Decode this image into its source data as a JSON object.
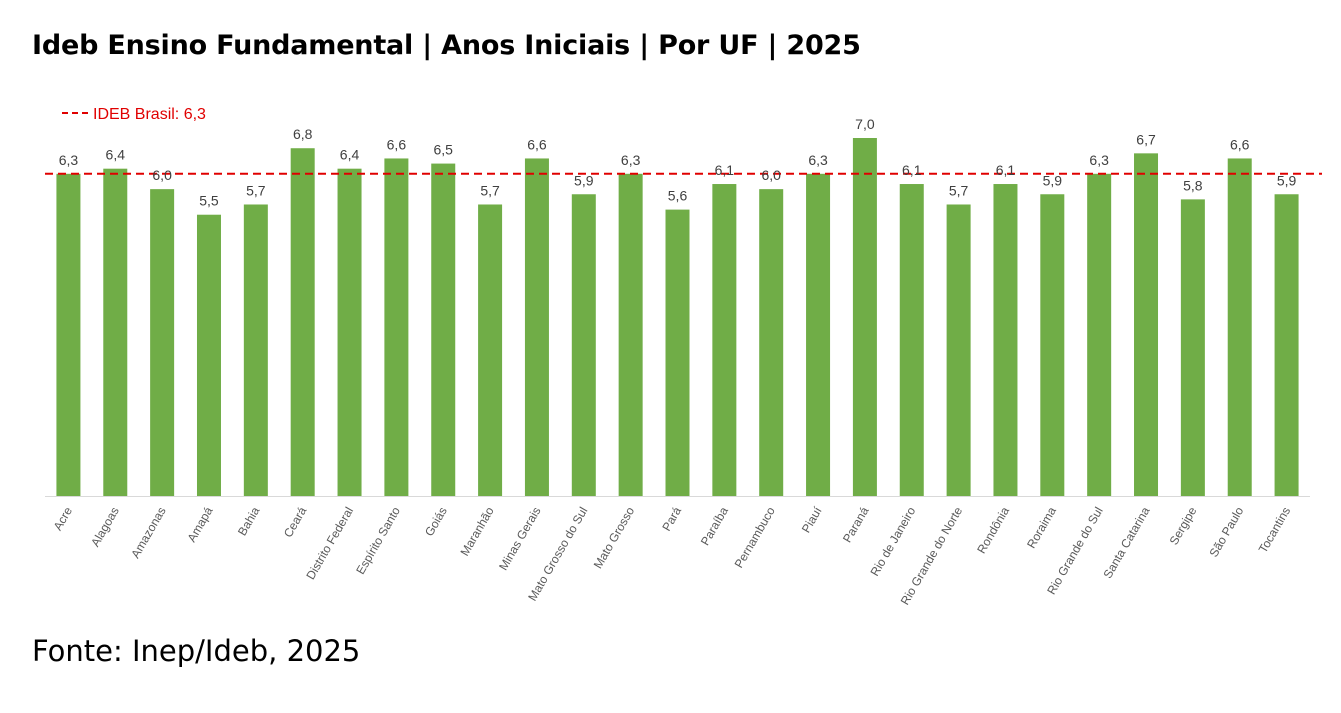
{
  "chart_data": {
    "type": "bar",
    "title": "Ideb Ensino Fundamental | Anos Iniciais | Por UF | 2025",
    "categories": [
      "Acre",
      "Alagoas",
      "Amazonas",
      "Amapá",
      "Bahia",
      "Ceará",
      "Distrito Federal",
      "Espírito Santo",
      "Goiás",
      "Maranhão",
      "Minas Gerais",
      "Mato Grosso do Sul",
      "Mato Grosso",
      "Pará",
      "Paraíba",
      "Pernambuco",
      "Piauí",
      "Paraná",
      "Rio de Janeiro",
      "Rio Grande do Norte",
      "Rondônia",
      "Roraima",
      "Rio Grande do Sul",
      "Santa Catarina",
      "Sergipe",
      "São Paulo",
      "Tocantins"
    ],
    "values": [
      6.3,
      6.4,
      6.0,
      5.5,
      5.7,
      6.8,
      6.4,
      6.6,
      6.5,
      5.7,
      6.6,
      5.9,
      6.3,
      5.6,
      6.1,
      6.0,
      6.3,
      7.0,
      6.1,
      5.7,
      6.1,
      5.9,
      6.3,
      6.7,
      5.8,
      6.6,
      5.9
    ],
    "value_labels": [
      "6,3",
      "6,4",
      "6,0",
      "5,5",
      "5,7",
      "6,8",
      "6,4",
      "6,6",
      "6,5",
      "5,7",
      "6,6",
      "5,9",
      "6,3",
      "5,6",
      "6,1",
      "6,0",
      "6,3",
      "7,0",
      "6,1",
      "5,7",
      "6,1",
      "5,9",
      "6,3",
      "6,7",
      "5,8",
      "6,6",
      "5,9"
    ],
    "ylim": [
      0,
      7.2
    ],
    "reference_line": {
      "label": "IDEB Brasil: 6,3",
      "value": 6.3,
      "color": "#e00000",
      "style": "dashed"
    },
    "bar_color": "#70ad47",
    "grid": false,
    "xlabel": "",
    "ylabel": ""
  },
  "source": "Fonte: Inep/Ideb, 2025"
}
